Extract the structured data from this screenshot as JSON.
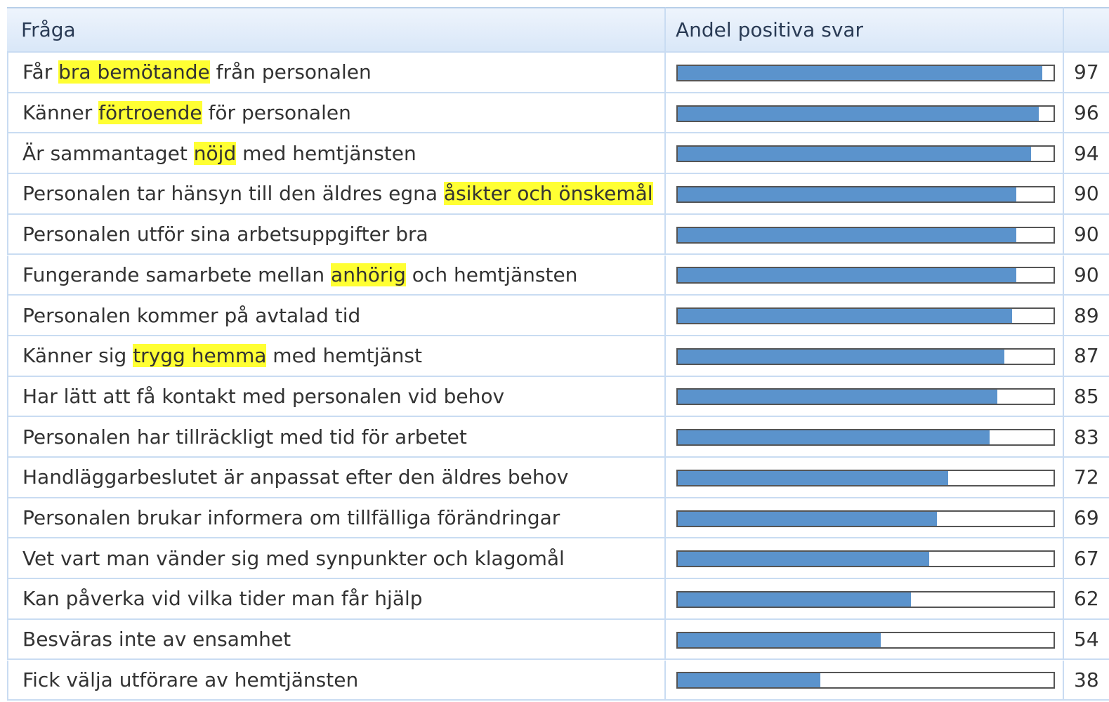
{
  "table": {
    "header": [
      "Fråga",
      "Andel positiva svar"
    ],
    "bar_color": "#5b93cc",
    "highlight_color": "#ffff33",
    "scale_max": 100,
    "rows": [
      {
        "before": "Får ",
        "highlight": "bra bemötande",
        "after": " från personalen",
        "value": 97
      },
      {
        "before": "Känner ",
        "highlight": "förtroende",
        "after": " för personalen",
        "value": 96
      },
      {
        "before": "Är sammantaget ",
        "highlight": "nöjd",
        "after": " med hemtjänsten",
        "value": 94
      },
      {
        "before": "Personalen tar hänsyn till den äldres egna ",
        "highlight": "åsikter och önskemål",
        "value": 90
      },
      {
        "before": "Personalen utför sina arbetsuppgifter bra",
        "value": 90
      },
      {
        "before": "Fungerande samarbete mellan ",
        "highlight": "anhörig",
        "after": " och hemtjänsten",
        "value": 90
      },
      {
        "before": "Personalen kommer på avtalad tid",
        "value": 89
      },
      {
        "before": "Känner sig ",
        "highlight": "trygg hemma",
        "after": " med hemtjänst",
        "value": 87
      },
      {
        "before": "Har lätt att få kontakt med personalen vid behov",
        "value": 85
      },
      {
        "before": "Personalen har tillräckligt med tid för arbetet",
        "value": 83
      },
      {
        "before": "Handläggarbeslutet är anpassat efter den äldres behov",
        "value": 72
      },
      {
        "before": "Personalen brukar informera om tillfälliga förändringar",
        "value": 69
      },
      {
        "before": "Vet vart man vänder sig med synpunkter och klagomål",
        "value": 67
      },
      {
        "before": "Kan påverka vid vilka tider man får hjälp",
        "value": 62
      },
      {
        "before": "Besväras inte av ensamhet",
        "value": 54
      },
      {
        "before": "Fick välja utförare av hemtjänsten",
        "value": 38
      }
    ]
  }
}
